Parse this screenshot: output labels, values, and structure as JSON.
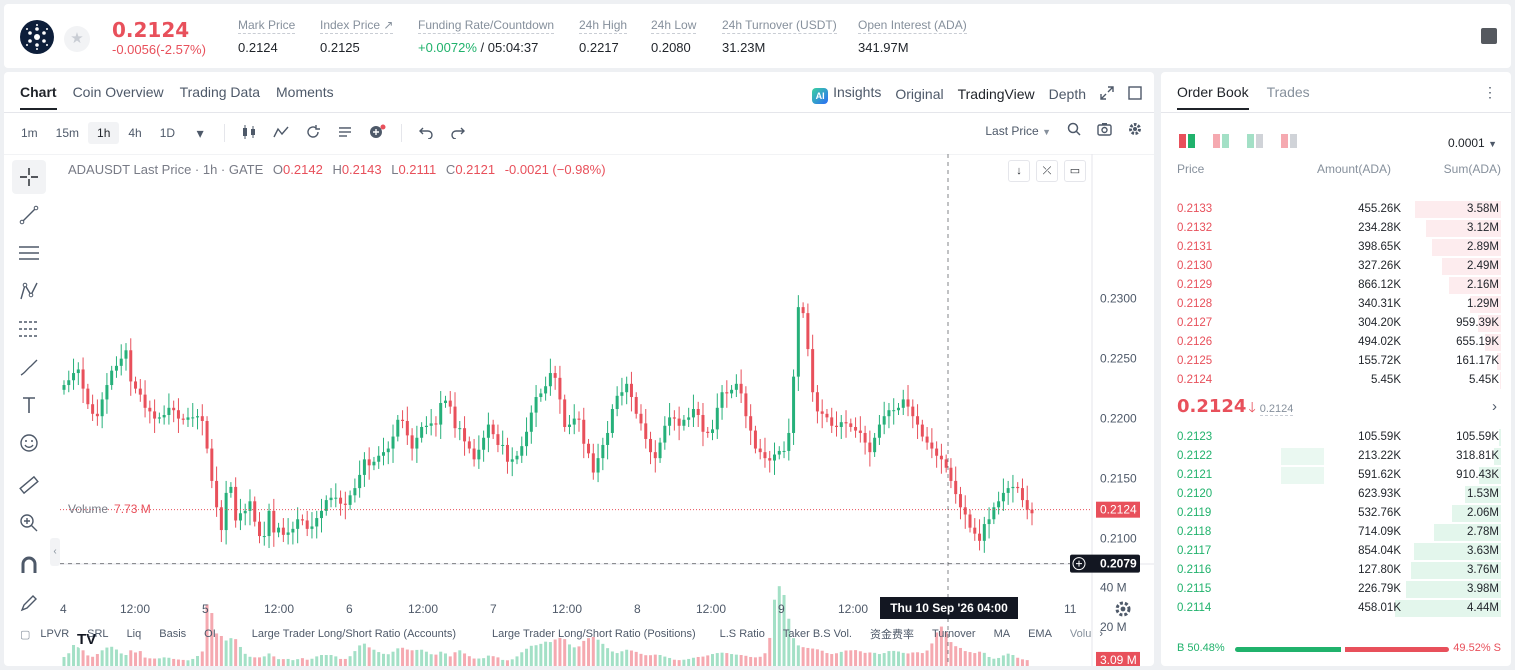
{
  "header": {
    "last_price": "0.2124",
    "change": "-0.0056(-2.57%)",
    "stats": [
      {
        "label": "Mark Price",
        "value": "0.2124"
      },
      {
        "label": "Index Price ↗",
        "value": "0.2125"
      },
      {
        "label": "Funding Rate/Countdown",
        "value_green": "+0.0072%",
        "value": " / 05:04:37"
      },
      {
        "label": "24h High",
        "value": "0.2217"
      },
      {
        "label": "24h Low",
        "value": "0.2080"
      },
      {
        "label": "24h Turnover (USDT)",
        "value": "31.23M"
      },
      {
        "label": "Open Interest (ADA)",
        "value": "341.97M"
      }
    ]
  },
  "tabs": [
    "Chart",
    "Coin Overview",
    "Trading Data",
    "Moments"
  ],
  "view_tabs": {
    "insights": "Insights",
    "ai_badge": "AI",
    "original": "Original",
    "tradingview": "TradingView",
    "depth": "Depth"
  },
  "timeframes": [
    "1m",
    "15m",
    "1h",
    "4h",
    "1D"
  ],
  "price_type": "Last Price",
  "legend": {
    "symbol": "ADAUSDT Last Price · 1h · GATE",
    "o": "O",
    "o_val": "0.2142",
    "h": "H",
    "h_val": "0.2143",
    "l": "L",
    "l_val": "0.2111",
    "c": "C",
    "c_val": "0.2121",
    "chg": "-0.0021 (−0.98%)"
  },
  "volume_legend": {
    "label": "Volume",
    "value": "7.73 M"
  },
  "bottom_indicators": [
    "LPVR",
    "SRL",
    "Liq",
    "Basis",
    "OI",
    "Large Trader Long/Short Ratio (Accounts)",
    "Large Trader Long/Short Ratio (Positions)",
    "L.S Ratio",
    "Taker B.S Vol.",
    "资金费率",
    "Turnover",
    "MA",
    "EMA",
    "Volu"
  ],
  "chart_data": {
    "type": "candlestick",
    "symbol": "ADAUSDT",
    "interval": "1h",
    "y_ticks": [
      "0.2300",
      "0.2250",
      "0.2200",
      "0.2150",
      "0.2100"
    ],
    "y_range": [
      0.2067,
      0.2344
    ],
    "last_price_label": "0.2124",
    "last_price": 0.2124,
    "crosshair_price_label": "0.2079",
    "crosshair_price": 0.2079,
    "crosshair_time_label": "Thu 10 Sep '26   04:00",
    "volume_ticks": [
      "40 M",
      "20 M"
    ],
    "volume_range_m": [
      0,
      52
    ],
    "last_volume_label": "3.09 M",
    "x_ticks": [
      "4",
      "12:00",
      "5",
      "12:00",
      "6",
      "12:00",
      "7",
      "12:00",
      "8",
      "12:00",
      "9",
      "12:00",
      "11"
    ],
    "closes": [
      0.2228,
      0.2232,
      0.2238,
      0.2241,
      0.2225,
      0.2212,
      0.2204,
      0.2202,
      0.2216,
      0.2228,
      0.224,
      0.2244,
      0.225,
      0.2257,
      0.2231,
      0.2225,
      0.222,
      0.2209,
      0.2206,
      0.22,
      0.2201,
      0.2203,
      0.2209,
      0.2207,
      0.22,
      0.2199,
      0.2201,
      0.2201,
      0.2202,
      0.2198,
      0.2175,
      0.2148,
      0.2126,
      0.2107,
      0.2138,
      0.2143,
      0.2115,
      0.2121,
      0.2123,
      0.2131,
      0.2114,
      0.2102,
      0.2102,
      0.2123,
      0.2105,
      0.2109,
      0.2103,
      0.2105,
      0.2108,
      0.2116,
      0.2115,
      0.2108,
      0.211,
      0.2117,
      0.2123,
      0.2132,
      0.2134,
      0.2134,
      0.2129,
      0.2128,
      0.2136,
      0.2142,
      0.2153,
      0.2166,
      0.2161,
      0.2164,
      0.2169,
      0.2172,
      0.2175,
      0.2185,
      0.2199,
      0.2198,
      0.2186,
      0.2175,
      0.2184,
      0.2193,
      0.2194,
      0.2196,
      0.2195,
      0.2213,
      0.2215,
      0.221,
      0.2192,
      0.2192,
      0.2181,
      0.2175,
      0.2166,
      0.2174,
      0.2184,
      0.2195,
      0.2187,
      0.2178,
      0.2178,
      0.2164,
      0.2166,
      0.2169,
      0.2177,
      0.2189,
      0.2205,
      0.2218,
      0.2221,
      0.2227,
      0.2238,
      0.2234,
      0.2216,
      0.2193,
      0.2195,
      0.22,
      0.2199,
      0.2179,
      0.2171,
      0.2155,
      0.2167,
      0.2178,
      0.2188,
      0.2208,
      0.2219,
      0.2222,
      0.2229,
      0.2218,
      0.2204,
      0.2196,
      0.2183,
      0.2172,
      0.2167,
      0.218,
      0.2194,
      0.2201,
      0.22,
      0.2194,
      0.2199,
      0.2201,
      0.2208,
      0.2203,
      0.2189,
      0.2188,
      0.2191,
      0.2209,
      0.2222,
      0.2221,
      0.2224,
      0.2229,
      0.2221,
      0.2202,
      0.219,
      0.2175,
      0.2172,
      0.2167,
      0.2165,
      0.217,
      0.2173,
      0.2173,
      0.2188,
      0.2235,
      0.2293,
      0.2288,
      0.2258,
      0.2222,
      0.2206,
      0.2204,
      0.2201,
      0.2194,
      0.2193,
      0.2197,
      0.2196,
      0.2193,
      0.219,
      0.2188,
      0.218,
      0.2172,
      0.2184,
      0.2195,
      0.2202,
      0.2207,
      0.2207,
      0.2209,
      0.2216,
      0.221,
      0.2202,
      0.2195,
      0.2185,
      0.218,
      0.2175,
      0.2169,
      0.2166,
      0.2159,
      0.2148,
      0.2137,
      0.2126,
      0.212,
      0.2109,
      0.2104,
      0.2098,
      0.2112,
      0.2116,
      0.2126,
      0.2131,
      0.2138,
      0.2142,
      0.2143,
      0.2142,
      0.2132,
      0.2124,
      0.2121
    ],
    "volumes_m": [
      4.6,
      6.5,
      10.7,
      9.6,
      8.0,
      5.4,
      4.7,
      6.1,
      8.0,
      9.4,
      9.8,
      8.4,
      6.4,
      5.6,
      8.0,
      6.9,
      7.6,
      4.3,
      3.9,
      3.8,
      3.9,
      4.4,
      4.2,
      3.6,
      3.3,
      3.1,
      2.9,
      3.6,
      5.1,
      7.4,
      31.4,
      27.0,
      16.6,
      15.3,
      13.0,
      14.2,
      13.7,
      9.7,
      6.2,
      4.7,
      4.4,
      4.4,
      4.9,
      6.4,
      4.9,
      3.5,
      3.5,
      3.6,
      3.0,
      3.5,
      4.0,
      3.2,
      3.7,
      4.9,
      5.6,
      5.6,
      5.6,
      4.9,
      3.6,
      3.6,
      5.0,
      7.6,
      10.5,
      11.4,
      9.5,
      8.3,
      7.1,
      6.2,
      6.0,
      7.3,
      9.0,
      9.3,
      8.4,
      8.0,
      8.2,
      8.3,
      7.3,
      6.0,
      5.8,
      7.3,
      6.4,
      4.9,
      7.0,
      8.0,
      6.4,
      5.0,
      3.8,
      3.8,
      4.0,
      5.3,
      5.0,
      4.4,
      3.1,
      2.9,
      3.4,
      4.9,
      7.0,
      8.8,
      10.3,
      10.6,
      11.3,
      12.4,
      12.2,
      13.5,
      14.3,
      13.7,
      11.0,
      9.5,
      10.0,
      12.8,
      14.2,
      14.8,
      13.4,
      11.3,
      9.1,
      7.4,
      6.6,
      7.5,
      8.3,
      7.9,
      7.2,
      6.2,
      5.5,
      5.5,
      5.8,
      5.6,
      4.8,
      4.1,
      3.2,
      3.0,
      3.2,
      3.6,
      4.2,
      4.6,
      4.8,
      5.4,
      6.1,
      6.6,
      6.8,
      6.6,
      6.1,
      5.8,
      5.6,
      5.2,
      4.6,
      4.4,
      4.7,
      6.5,
      14.3,
      33.8,
      40.7,
      36.2,
      24.1,
      14.2,
      10.5,
      9.6,
      9.2,
      8.9,
      8.5,
      7.8,
      6.6,
      6.1,
      6.5,
      7.2,
      7.9,
      8.0,
      8.1,
      7.5,
      6.7,
      6.9,
      6.7,
      6.1,
      6.6,
      7.6,
      7.7,
      7.4,
      6.7,
      6.4,
      6.9,
      7.0,
      6.6,
      7.9,
      11.5,
      17.1,
      20.1,
      17.4,
      12.2,
      10.1,
      9.2,
      7.6,
      7.1,
      6.6,
      7.3,
      6.7,
      4.6,
      3.7,
      4.1,
      5.4,
      6.3,
      5.6,
      4.2,
      3.4,
      3.0
    ]
  },
  "order_book": {
    "tabs": [
      "Order Book",
      "Trades"
    ],
    "precision": "0.0001",
    "headers": {
      "price": "Price",
      "amount": "Amount(ADA)",
      "sum": "Sum(ADA)"
    },
    "asks": [
      {
        "price": "0.2133",
        "amount": "455.26K",
        "sum": "3.58M",
        "depth": 0.81,
        "amount_depth": 0
      },
      {
        "price": "0.2132",
        "amount": "234.28K",
        "sum": "3.12M",
        "depth": 0.71,
        "amount_depth": 0
      },
      {
        "price": "0.2131",
        "amount": "398.65K",
        "sum": "2.89M",
        "depth": 0.65,
        "amount_depth": 0
      },
      {
        "price": "0.2130",
        "amount": "327.26K",
        "sum": "2.49M",
        "depth": 0.56,
        "amount_depth": 0
      },
      {
        "price": "0.2129",
        "amount": "866.12K",
        "sum": "2.16M",
        "depth": 0.49,
        "amount_depth": 0
      },
      {
        "price": "0.2128",
        "amount": "340.31K",
        "sum": "1.29M",
        "depth": 0.29,
        "amount_depth": 0
      },
      {
        "price": "0.2127",
        "amount": "304.20K",
        "sum": "959.39K",
        "depth": 0.22,
        "amount_depth": 0
      },
      {
        "price": "0.2126",
        "amount": "494.02K",
        "sum": "655.19K",
        "depth": 0.15,
        "amount_depth": 0
      },
      {
        "price": "0.2125",
        "amount": "155.72K",
        "sum": "161.17K",
        "depth": 0.04,
        "amount_depth": 0
      },
      {
        "price": "0.2124",
        "amount": "5.45K",
        "sum": "5.45K",
        "depth": 0.01,
        "amount_depth": 0
      }
    ],
    "mid_price": "0.2124",
    "mid_arrow": "🡓",
    "mark_price": "0.2124",
    "bids": [
      {
        "price": "0.2123",
        "amount": "105.59K",
        "sum": "105.59K",
        "depth": 0.02,
        "amount_depth": 0
      },
      {
        "price": "0.2122",
        "amount": "213.22K",
        "sum": "318.81K",
        "depth": 0.07,
        "amount_depth": 0.36
      },
      {
        "price": "0.2121",
        "amount": "591.62K",
        "sum": "910.43K",
        "depth": 0.21,
        "amount_depth": 0.36
      },
      {
        "price": "0.2120",
        "amount": "623.93K",
        "sum": "1.53M",
        "depth": 0.34,
        "amount_depth": 0
      },
      {
        "price": "0.2119",
        "amount": "532.76K",
        "sum": "2.06M",
        "depth": 0.46,
        "amount_depth": 0
      },
      {
        "price": "0.2118",
        "amount": "714.09K",
        "sum": "2.78M",
        "depth": 0.63,
        "amount_depth": 0
      },
      {
        "price": "0.2117",
        "amount": "854.04K",
        "sum": "3.63M",
        "depth": 0.82,
        "amount_depth": 0
      },
      {
        "price": "0.2116",
        "amount": "127.80K",
        "sum": "3.76M",
        "depth": 0.85,
        "amount_depth": 0
      },
      {
        "price": "0.2115",
        "amount": "226.79K",
        "sum": "3.98M",
        "depth": 0.9,
        "amount_depth": 0
      },
      {
        "price": "0.2114",
        "amount": "458.01K",
        "sum": "4.44M",
        "depth": 1.0,
        "amount_depth": 0
      }
    ],
    "buy_ratio": "B 50.48%",
    "sell_ratio": "49.52% S"
  },
  "colors": {
    "up": "#26b07a",
    "down": "#e8505b",
    "up_vol": "#a3e0c6",
    "down_vol": "#f5a9b0"
  }
}
